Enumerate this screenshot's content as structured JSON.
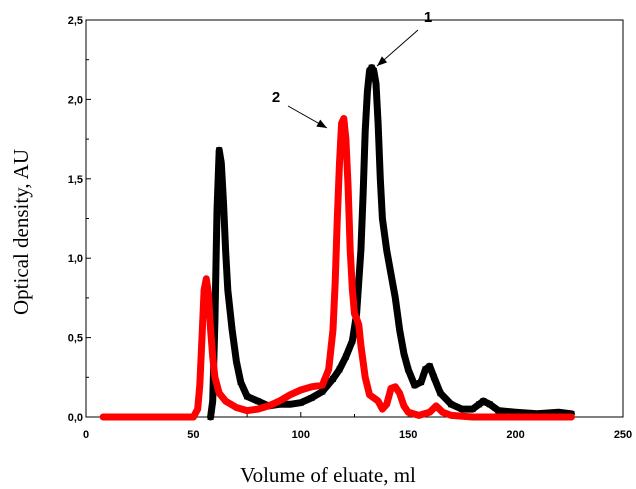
{
  "chart_data": {
    "type": "line",
    "title": "",
    "xlabel": "Volume of eluate, ml",
    "ylabel": "Optical density, AU",
    "xlim": [
      0,
      250
    ],
    "ylim": [
      0,
      2.5
    ],
    "x_ticks": [
      0,
      50,
      100,
      150,
      200,
      250
    ],
    "x_tick_labels": [
      "0",
      "50",
      "100",
      "150",
      "200",
      "250"
    ],
    "y_ticks": [
      0,
      0.5,
      1.0,
      1.5,
      2.0,
      2.5
    ],
    "y_tick_labels": [
      "0,0",
      "0,5",
      "1,0",
      "1,5",
      "2,0",
      "2,5"
    ],
    "grid": false,
    "legend": "none",
    "annotations": [
      {
        "text": "1",
        "series": 0,
        "points_to": [
          134,
          2.2
        ]
      },
      {
        "text": "2",
        "series": 1,
        "points_to": [
          120,
          1.88
        ]
      }
    ],
    "series": [
      {
        "color": "#000000",
        "style": "thick-square-markers",
        "points": [
          [
            58,
            0
          ],
          [
            59,
            0.1
          ],
          [
            60,
            0.6
          ],
          [
            61,
            1.3
          ],
          [
            62,
            1.68
          ],
          [
            63,
            1.6
          ],
          [
            64,
            1.35
          ],
          [
            65,
            1.05
          ],
          [
            66,
            0.8
          ],
          [
            68,
            0.55
          ],
          [
            70,
            0.35
          ],
          [
            72,
            0.22
          ],
          [
            75,
            0.13
          ],
          [
            80,
            0.1
          ],
          [
            85,
            0.07
          ],
          [
            90,
            0.08
          ],
          [
            95,
            0.08
          ],
          [
            100,
            0.09
          ],
          [
            105,
            0.12
          ],
          [
            110,
            0.16
          ],
          [
            115,
            0.24
          ],
          [
            118,
            0.3
          ],
          [
            121,
            0.38
          ],
          [
            124,
            0.48
          ],
          [
            126,
            0.65
          ],
          [
            128,
            1.05
          ],
          [
            129,
            1.4
          ],
          [
            130,
            1.8
          ],
          [
            131,
            2.05
          ],
          [
            132,
            2.18
          ],
          [
            133,
            2.2
          ],
          [
            134,
            2.18
          ],
          [
            135,
            2.1
          ],
          [
            136,
            1.85
          ],
          [
            137,
            1.5
          ],
          [
            138,
            1.25
          ],
          [
            140,
            1.05
          ],
          [
            142,
            0.9
          ],
          [
            144,
            0.75
          ],
          [
            146,
            0.55
          ],
          [
            148,
            0.4
          ],
          [
            150,
            0.3
          ],
          [
            153,
            0.2
          ],
          [
            156,
            0.22
          ],
          [
            158,
            0.3
          ],
          [
            160,
            0.32
          ],
          [
            162,
            0.25
          ],
          [
            165,
            0.15
          ],
          [
            170,
            0.08
          ],
          [
            175,
            0.05
          ],
          [
            180,
            0.05
          ],
          [
            183,
            0.08
          ],
          [
            185,
            0.1
          ],
          [
            188,
            0.08
          ],
          [
            192,
            0.04
          ],
          [
            200,
            0.03
          ],
          [
            210,
            0.02
          ],
          [
            220,
            0.03
          ],
          [
            226,
            0.02
          ]
        ]
      },
      {
        "color": "#ff0000",
        "style": "thick-dot-markers",
        "points": [
          [
            8,
            0
          ],
          [
            20,
            0
          ],
          [
            30,
            0
          ],
          [
            40,
            0
          ],
          [
            50,
            0
          ],
          [
            52,
            0.05
          ],
          [
            53,
            0.2
          ],
          [
            54,
            0.5
          ],
          [
            55,
            0.8
          ],
          [
            56,
            0.87
          ],
          [
            57,
            0.78
          ],
          [
            58,
            0.55
          ],
          [
            59,
            0.38
          ],
          [
            60,
            0.25
          ],
          [
            62,
            0.15
          ],
          [
            65,
            0.1
          ],
          [
            70,
            0.06
          ],
          [
            75,
            0.04
          ],
          [
            80,
            0.05
          ],
          [
            85,
            0.07
          ],
          [
            90,
            0.1
          ],
          [
            95,
            0.14
          ],
          [
            100,
            0.17
          ],
          [
            105,
            0.19
          ],
          [
            110,
            0.2
          ],
          [
            113,
            0.3
          ],
          [
            115,
            0.55
          ],
          [
            116,
            0.85
          ],
          [
            117,
            1.25
          ],
          [
            118,
            1.6
          ],
          [
            119,
            1.85
          ],
          [
            120,
            1.88
          ],
          [
            121,
            1.75
          ],
          [
            122,
            1.45
          ],
          [
            123,
            1.05
          ],
          [
            124,
            0.8
          ],
          [
            125,
            0.65
          ],
          [
            126,
            0.62
          ],
          [
            127,
            0.58
          ],
          [
            128,
            0.45
          ],
          [
            130,
            0.25
          ],
          [
            132,
            0.14
          ],
          [
            134,
            0.12
          ],
          [
            136,
            0.1
          ],
          [
            138,
            0.05
          ],
          [
            140,
            0.08
          ],
          [
            142,
            0.18
          ],
          [
            144,
            0.19
          ],
          [
            146,
            0.15
          ],
          [
            148,
            0.07
          ],
          [
            150,
            0.03
          ],
          [
            155,
            0.01
          ],
          [
            160,
            0.03
          ],
          [
            163,
            0.07
          ],
          [
            166,
            0.03
          ],
          [
            170,
            0.01
          ],
          [
            180,
            0
          ],
          [
            190,
            0
          ],
          [
            200,
            0
          ],
          [
            210,
            0
          ],
          [
            226,
            0
          ]
        ]
      }
    ]
  }
}
